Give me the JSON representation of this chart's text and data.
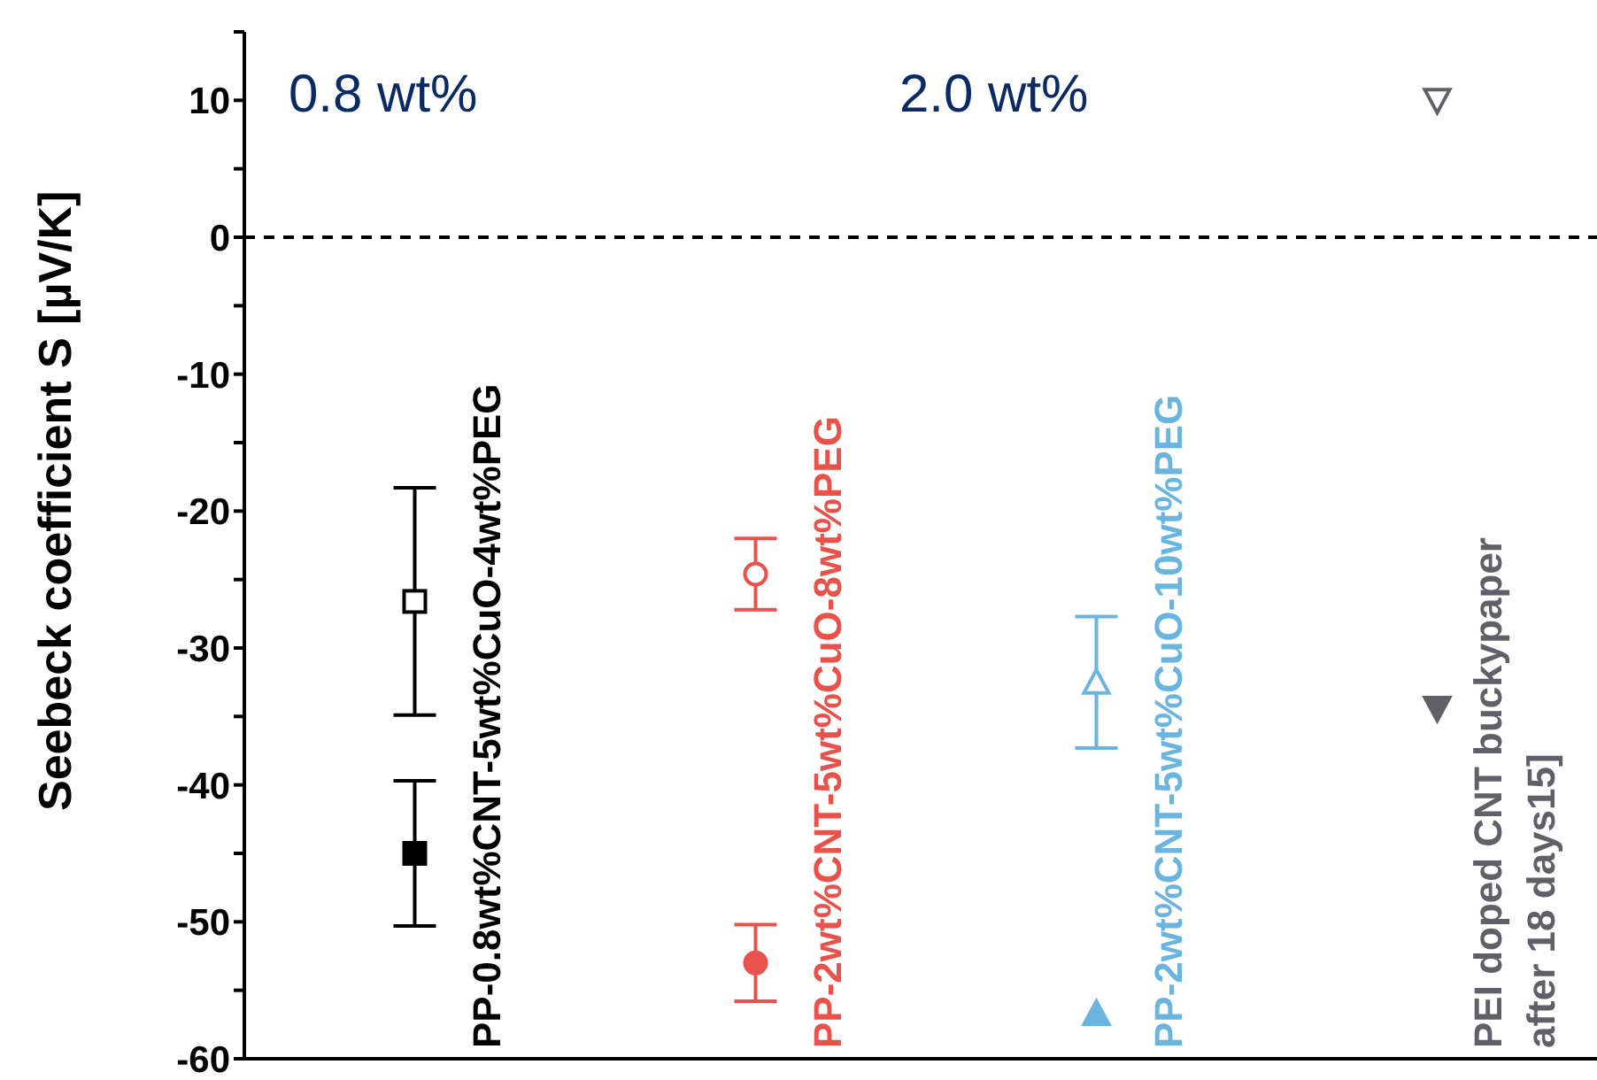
{
  "chart_data": {
    "type": "scatter",
    "ylabel": "Seebeck coefficient S [µV/K]",
    "categories": [
      null,
      null,
      null,
      null
    ],
    "annotations": [
      "0.8 wt%",
      "2.0 wt%"
    ],
    "series": [
      {
        "color": "#000000",
        "marker": "square-open",
        "values": [
          -26.6,
          null,
          null,
          null
        ],
        "errors": [
          8.3,
          null,
          null,
          null
        ]
      },
      {
        "name": "PP-0.8wt%CNT-5wt%CuO-4wt%PEG",
        "color": "#000000",
        "marker": "square",
        "values": [
          -45,
          null,
          null,
          null
        ],
        "errors": [
          5.3,
          null,
          null,
          null
        ]
      },
      {
        "color": "#e8524a",
        "marker": "circle-open",
        "values": [
          null,
          -24.6,
          null,
          null
        ],
        "errors": [
          null,
          2.6,
          null,
          null
        ]
      },
      {
        "name": "PP-2wt%CNT-5wt%CuO-8wt%PEG",
        "color": "#e8524a",
        "marker": "circle",
        "values": [
          null,
          -53,
          null,
          null
        ],
        "errors": [
          null,
          2.8,
          null,
          null
        ]
      },
      {
        "color": "#6ab4e0",
        "marker": "triangle-open",
        "values": [
          null,
          null,
          -32.5,
          null
        ],
        "errors": [
          null,
          null,
          4.8,
          null
        ]
      },
      {
        "name": "PP-2wt%CNT-5wt%CuO-10wt%PEG",
        "color": "#6ab4e0",
        "marker": "triangle",
        "values": [
          null,
          null,
          -56.7,
          null
        ]
      },
      {
        "color": "#5f6068",
        "marker": "triangle-down-open",
        "values": [
          null,
          null,
          null,
          10
        ]
      },
      {
        "name": "PEI doped CNT buckypaper after 18 days15]",
        "color": "#5f6068",
        "marker": "triangle-down",
        "values": [
          null,
          null,
          null,
          -34.4
        ]
      }
    ],
    "ylim": [
      -60,
      15
    ],
    "yticks": [
      {
        "value": 15,
        "label": null
      },
      10,
      {
        "value": 5,
        "label": null
      },
      0,
      {
        "value": -5,
        "label": null
      },
      -10,
      {
        "value": -15,
        "label": null
      },
      -20,
      {
        "value": -25,
        "label": null
      },
      -30,
      {
        "value": -35,
        "label": null
      },
      -40,
      {
        "value": -45,
        "label": null
      },
      -50,
      {
        "value": -55,
        "label": null
      },
      -60
    ],
    "ref_lines": [
      {
        "axis": "y",
        "value": 0,
        "color": "#000000",
        "line_style": "dashed"
      }
    ],
    "tick_labels": "y",
    "grid": false,
    "legend": false
  }
}
